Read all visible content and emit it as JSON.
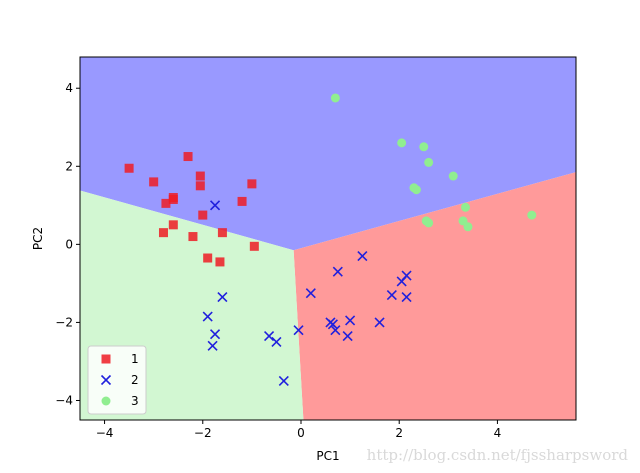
{
  "chart_data": {
    "type": "scatter",
    "title": "",
    "xlabel": "PC1",
    "ylabel": "PC2",
    "xlim": [
      -4.5,
      5.6
    ],
    "ylim": [
      -4.5,
      4.8
    ],
    "xticks": [
      -4,
      -2,
      0,
      2,
      4
    ],
    "yticks": [
      -4,
      -2,
      0,
      2,
      4
    ],
    "decision_regions": {
      "center": [
        -0.15,
        -0.15
      ],
      "boundaries": {
        "upper_left_edge_endpoint": [
          -4.5,
          1.38
        ],
        "upper_right_edge_endpoint": [
          5.6,
          1.85
        ],
        "lower_edge_endpoint": [
          0.05,
          -4.5
        ]
      },
      "colors": {
        "1": "#ff9a9a",
        "2": "#9999ff",
        "3": "#d2f7d2"
      },
      "layout": {
        "1": "bottom-right",
        "2": "top",
        "3": "left"
      }
    },
    "legend": {
      "placement": "lower-left",
      "entries": [
        "1",
        "2",
        "3"
      ]
    },
    "series": [
      {
        "name": "1",
        "marker": "square",
        "color": "#ee1c25",
        "points": [
          [
            -3.5,
            1.95
          ],
          [
            -3.0,
            1.6
          ],
          [
            -2.75,
            1.05
          ],
          [
            -2.6,
            1.2
          ],
          [
            -2.6,
            1.15
          ],
          [
            -2.3,
            2.25
          ],
          [
            -2.05,
            1.75
          ],
          [
            -2.05,
            1.5
          ],
          [
            -2.0,
            0.75
          ],
          [
            -1.2,
            1.1
          ],
          [
            -1.0,
            1.55
          ],
          [
            -2.6,
            0.5
          ],
          [
            -2.8,
            0.3
          ],
          [
            -2.2,
            0.2
          ],
          [
            -1.6,
            0.3
          ],
          [
            -1.9,
            -0.35
          ],
          [
            -1.65,
            -0.45
          ],
          [
            -0.95,
            -0.05
          ]
        ]
      },
      {
        "name": "2",
        "marker": "x",
        "color": "#2020dd",
        "points": [
          [
            -1.75,
            1.0
          ],
          [
            -1.6,
            -1.35
          ],
          [
            -1.9,
            -1.85
          ],
          [
            -1.75,
            -2.3
          ],
          [
            -1.8,
            -2.6
          ],
          [
            -0.65,
            -2.35
          ],
          [
            -0.5,
            -2.5
          ],
          [
            -0.35,
            -3.5
          ],
          [
            -0.05,
            -2.2
          ],
          [
            0.2,
            -1.25
          ],
          [
            0.6,
            -2.0
          ],
          [
            0.65,
            -2.05
          ],
          [
            0.7,
            -2.2
          ],
          [
            0.75,
            -0.7
          ],
          [
            0.95,
            -2.35
          ],
          [
            1.0,
            -1.95
          ],
          [
            1.25,
            -0.3
          ],
          [
            1.6,
            -2.0
          ],
          [
            1.85,
            -1.3
          ],
          [
            2.05,
            -0.95
          ],
          [
            2.15,
            -0.8
          ],
          [
            2.15,
            -1.35
          ]
        ]
      },
      {
        "name": "3",
        "marker": "circle",
        "color": "#90ee90",
        "points": [
          [
            0.7,
            3.75
          ],
          [
            2.05,
            2.6
          ],
          [
            2.5,
            2.5
          ],
          [
            2.6,
            2.1
          ],
          [
            3.1,
            1.75
          ],
          [
            2.3,
            1.45
          ],
          [
            2.35,
            1.4
          ],
          [
            2.55,
            0.6
          ],
          [
            2.6,
            0.55
          ],
          [
            3.35,
            0.95
          ],
          [
            3.3,
            0.6
          ],
          [
            3.4,
            0.45
          ],
          [
            4.7,
            0.75
          ]
        ]
      }
    ]
  },
  "watermark": "http://blog.csdn.net/fjssharpsword"
}
